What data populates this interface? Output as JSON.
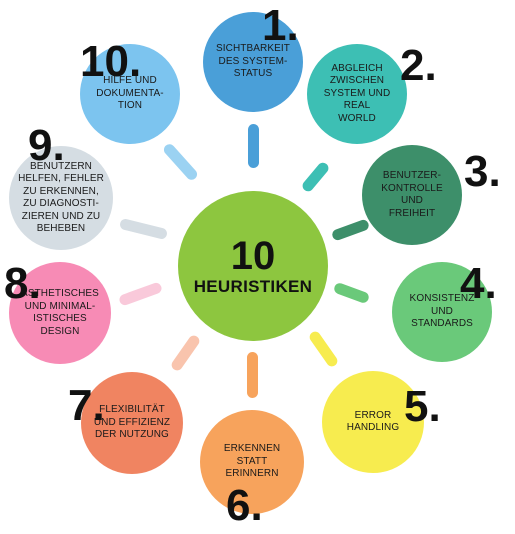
{
  "center": {
    "number": "10",
    "title": "HEURISTIKEN",
    "color": "#8dc63f"
  },
  "heuristics": [
    {
      "number": "1.",
      "label": "SICHTBARKEIT\nDES SYSTEM-\nSTATUS",
      "color": "#4a9fd8"
    },
    {
      "number": "2.",
      "label": "ABGLEICH\nZWISCHEN\nSYSTEM UND\nREAL\nWORLD",
      "color": "#3dbfb4"
    },
    {
      "number": "3.",
      "label": "BENUTZER-\nKONTROLLE\nUND\nFREIHEIT",
      "color": "#3d8f6a"
    },
    {
      "number": "4.",
      "label": "KONSISTENZ\nUND\nSTANDARDS",
      "color": "#6ac97a"
    },
    {
      "number": "5.",
      "label": "ERROR\nHANDLING",
      "color": "#f7ec4f"
    },
    {
      "number": "6.",
      "label": "ERKENNEN\nSTATT\nERINNERN",
      "color": "#f7a35c"
    },
    {
      "number": "7.",
      "label": "FLEXIBILITÄT\nUND EFFIZIENZ\nDER NUTZUNG",
      "color": "#f08461"
    },
    {
      "number": "8.",
      "label": "ÄSTHETISCHES\nUND MINIMAL-\nISTISCHES\nDESIGN",
      "color": "#f78bb5"
    },
    {
      "number": "9.",
      "label": "BENUTZERN\nHELFEN, FEHLER\nZU ERKENNEN,\nZU DIAGNOSTI-\nZIEREN UND ZU\nBEHEBEN",
      "color": "#d5dde3"
    },
    {
      "number": "10.",
      "label": "HILFE UND\nDOKUMENTA-\nTION",
      "color": "#7cc4ef"
    }
  ],
  "spoke_colors": [
    "#4a9fd8",
    "#3dbfb4",
    "#3d8f6a",
    "#6ac97a",
    "#f7ec4f",
    "#f7a35c",
    "#f9c4ad",
    "#f9c9da",
    "#d5dde3",
    "#9bd2f2"
  ]
}
